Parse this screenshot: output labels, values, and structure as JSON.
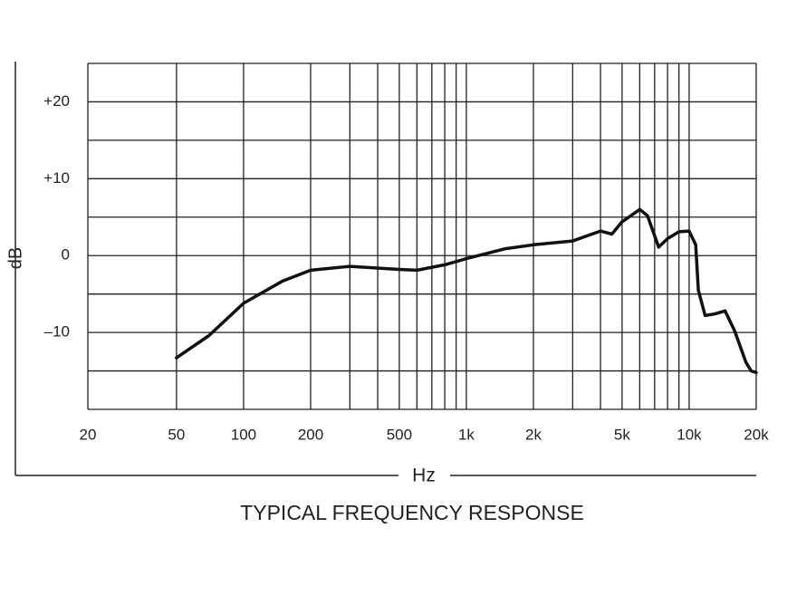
{
  "chart_data": {
    "type": "line",
    "title": "TYPICAL FREQUENCY RESPONSE",
    "x_label": "Hz",
    "y_label": "dB",
    "xscale": "log",
    "xlim": [
      20,
      20000
    ],
    "ylim": [
      -20,
      25
    ],
    "xticks": [
      20,
      50,
      100,
      200,
      500,
      {
        "value": 1000,
        "label": "1k"
      },
      {
        "value": 2000,
        "label": "2k"
      },
      {
        "value": 5000,
        "label": "5k"
      },
      {
        "value": 10000,
        "label": "10k"
      },
      {
        "value": 20000,
        "label": "20k"
      }
    ],
    "yticks": [
      {
        "value": 20,
        "label": "+20"
      },
      {
        "value": 10,
        "label": "+10"
      },
      0,
      {
        "value": -10,
        "label": "–10"
      }
    ],
    "xgrid": [
      20,
      50,
      100,
      200,
      300,
      400,
      500,
      600,
      700,
      800,
      900,
      1000,
      2000,
      3000,
      4000,
      5000,
      6000,
      7000,
      8000,
      9000,
      10000,
      20000
    ],
    "ygrid": [
      -20,
      -15,
      -10,
      -5,
      0,
      5,
      10,
      15,
      20,
      25
    ],
    "series": [
      {
        "color": "#111111",
        "x": [
          50,
          70,
          100,
          150,
          200,
          300,
          500,
          600,
          800,
          1000,
          1500,
          2000,
          3000,
          4000,
          4500,
          5000,
          6000,
          6500,
          7000,
          7300,
          8000,
          9000,
          10000,
          10700,
          11000,
          11800,
          13000,
          14500,
          16000,
          18000,
          19000,
          20000
        ],
        "values": [
          -13.3,
          -10.4,
          -6.2,
          -3.3,
          -1.9,
          -1.4,
          -1.8,
          -1.9,
          -1.2,
          -0.4,
          0.9,
          1.4,
          1.9,
          3.2,
          2.8,
          4.4,
          6,
          5.2,
          2.6,
          1.1,
          2.2,
          3.1,
          3.2,
          1.4,
          -4.5,
          -7.8,
          -7.6,
          -7.2,
          -9.8,
          -13.9,
          -15,
          -15.2
        ]
      }
    ]
  }
}
